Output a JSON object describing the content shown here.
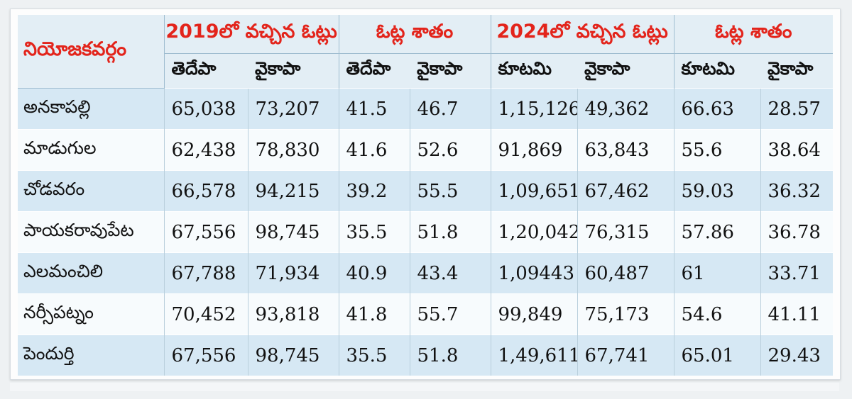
{
  "header": {
    "constituency": "నియోజకవర్గం",
    "votes_2019": "2019లో వచ్చిన ఓట్లు",
    "percent_2019": "ఓట్ల శాతం",
    "votes_2024": "2024లో వచ్చిన ఓట్లు",
    "percent_2024": "ఓట్ల శాతం"
  },
  "subheader": [
    "తెదేపా",
    "వైకాపా",
    "తెదేపా",
    "వైకాపా",
    "కూటమి",
    "వైకాపా",
    "కూటమి",
    "వైకాపా"
  ],
  "rows": [
    {
      "name": "అనకాపల్లి",
      "v": [
        "65,038",
        "73,207",
        "41.5",
        "46.7",
        "1,15,126",
        "49,362",
        "66.63",
        "28.57"
      ]
    },
    {
      "name": "మాడుగుల",
      "v": [
        "62,438",
        "78,830",
        "41.6",
        "52.6",
        "91,869",
        "63,843",
        "55.6",
        "38.64"
      ]
    },
    {
      "name": "చోడవరం",
      "v": [
        "66,578",
        "94,215",
        "39.2",
        "55.5",
        "1,09,651",
        "67,462",
        "59.03",
        "36.32"
      ]
    },
    {
      "name": "పాయకరావుపేట",
      "v": [
        "67,556",
        "98,745",
        "35.5",
        "51.8",
        "1,20,042",
        "76,315",
        "57.86",
        "36.78"
      ]
    },
    {
      "name": "ఎలమంచిలి",
      "v": [
        "67,788",
        "71,934",
        "40.9",
        "43.4",
        "1,09443",
        "60,487",
        "61",
        "33.71"
      ]
    },
    {
      "name": "నర్సీపట్నం",
      "v": [
        "70,452",
        "93,818",
        "41.8",
        "55.7",
        "99,849",
        "75,173",
        "54.6",
        "41.11"
      ]
    },
    {
      "name": "పెందుర్తి",
      "v": [
        "67,556",
        "98,745",
        "35.5",
        "51.8",
        "1,49,611",
        "67,741",
        "65.01",
        "29.43"
      ]
    }
  ]
}
